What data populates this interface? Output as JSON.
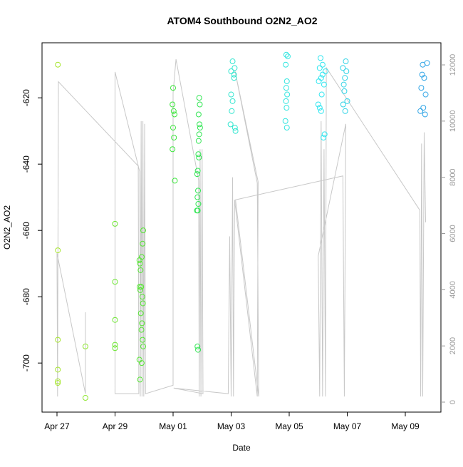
{
  "chart_data": {
    "type": "scatter",
    "title": "ATOM4 Southbound O2N2_AO2",
    "x_label": "Date",
    "y_label": "O2N2_AO2",
    "xlim": [
      -0.515,
      13.227
    ],
    "xticks": [
      {
        "value": 0,
        "label": "Apr 27"
      },
      {
        "value": 2,
        "label": "Apr 29"
      },
      {
        "value": 4,
        "label": "May 01"
      },
      {
        "value": 6,
        "label": "May 03"
      },
      {
        "value": 8,
        "label": "May 05"
      },
      {
        "value": 10,
        "label": "May 07"
      },
      {
        "value": 12,
        "label": "May 09"
      }
    ],
    "ylim": [
      -714.8,
      -603.4
    ],
    "yticks": [
      -620,
      -640,
      -660,
      -680,
      -700
    ],
    "y2lim": [
      -355,
      12787
    ],
    "y2ticks": [
      0,
      2000,
      4000,
      6000,
      8000,
      10000,
      12000
    ],
    "series": [
      {
        "color": "#a6e62e",
        "x": [
          0.03,
          0.03,
          0.03,
          0.03,
          0.03,
          0.03
        ],
        "values": [
          -610,
          -666,
          -693,
          -702,
          -705.5,
          -706
        ]
      },
      {
        "color": "#8ee62e",
        "x": [
          0.98,
          0.98
        ],
        "values": [
          -695,
          -710.5
        ]
      },
      {
        "color": "#6ee633",
        "x": [
          2.0,
          2.0,
          2.0,
          2.0,
          2.0
        ],
        "values": [
          -658,
          -675.5,
          -687,
          -694.5,
          -695.5
        ]
      },
      {
        "color": "#55e633",
        "x": [
          2.84,
          2.86,
          2.88,
          2.9,
          2.85,
          2.87,
          2.89,
          2.91,
          2.84,
          2.86,
          2.95,
          2.97,
          2.92,
          2.94,
          2.96,
          2.93,
          2.95,
          2.97,
          2.92
        ],
        "values": [
          -669,
          -670,
          -672,
          -677,
          -677,
          -678,
          -685,
          -690,
          -699,
          -705,
          -664,
          -660,
          -668,
          -680,
          -682,
          -688,
          -693,
          -695,
          -700
        ]
      },
      {
        "color": "#3ee63e",
        "x": [
          4.0,
          3.98,
          4.02,
          4.05,
          4.0,
          4.03,
          3.98,
          4.06
        ],
        "values": [
          -617,
          -622,
          -624,
          -625,
          -629,
          -632,
          -635.5,
          -645
        ]
      },
      {
        "color": "#33e655",
        "x": [
          4.9,
          4.92,
          4.88,
          4.91,
          4.93,
          4.9,
          4.88,
          4.87,
          4.89,
          4.85,
          4.83,
          4.86,
          4.84,
          4.87,
          4.82,
          4.85,
          4.84,
          4.86
        ],
        "values": [
          -620,
          -622,
          -625,
          -628,
          -629,
          -631,
          -633,
          -637,
          -638,
          -642,
          -643,
          -648,
          -650,
          -652,
          -654,
          -654,
          -695,
          -696
        ]
      },
      {
        "color": "#33e6d0",
        "x": [
          6.05,
          6.0,
          6.1,
          6.0,
          6.05,
          6.02,
          5.98,
          6.13,
          6.15,
          6.12,
          6.1
        ],
        "values": [
          -609,
          -612,
          -614,
          -619,
          -621,
          -624,
          -628,
          -629,
          -630,
          -611,
          -613
        ]
      },
      {
        "color": "#33e6e0",
        "x": [
          7.9,
          7.95,
          7.88,
          7.92,
          7.9,
          7.93,
          7.89,
          7.91,
          7.87,
          7.92
        ],
        "values": [
          -607,
          -607.5,
          -610,
          -615,
          -617,
          -619,
          -621,
          -623,
          -627,
          -629
        ]
      },
      {
        "color": "#33e6f0",
        "x": [
          9.08,
          9.05,
          9.15,
          9.1,
          9.2,
          9.12,
          9.0,
          9.05,
          9.1,
          9.22,
          9.18,
          9.15,
          9.25,
          9.02
        ],
        "values": [
          -608,
          -611,
          -613,
          -614,
          -616,
          -619,
          -622,
          -623,
          -624,
          -631,
          -632,
          -610,
          -612,
          -615
        ]
      },
      {
        "color": "#33d4e6",
        "x": [
          9.95,
          9.85,
          9.92,
          9.88,
          9.9,
          10.0,
          9.86,
          9.93,
          9.97
        ],
        "values": [
          -609,
          -611,
          -614,
          -616,
          -618,
          -621,
          -622,
          -624,
          -612
        ]
      },
      {
        "color": "#33a6e6",
        "x": [
          12.6,
          12.58,
          12.65,
          12.55,
          12.7,
          12.62,
          12.52,
          12.68,
          12.75
        ],
        "values": [
          -610,
          -613,
          -614,
          -617,
          -619,
          -623,
          -624,
          -625,
          -609.5
        ]
      },
      {
        "color": "#c8c8c8",
        "axis": "y2",
        "line": true,
        "x": [
          0.98,
          0.98,
          0.0,
          0.02,
          0.05,
          2.8,
          2.82,
          2.0,
          2.0,
          2.85,
          2.87,
          2.9,
          2.93,
          2.96,
          2.99,
          3.02,
          3.05,
          4.0,
          4.0,
          4.1,
          4.88,
          4.9,
          4.93,
          4.96,
          5.0,
          5.03,
          4.02,
          5.9,
          5.95,
          6.0,
          6.05,
          6.08,
          6.12,
          6.9,
          6.93,
          6.13,
          6.9,
          6.95,
          6.15,
          9.85,
          9.9,
          9.95,
          9.0,
          9.05,
          9.1,
          9.15,
          9.2,
          9.25,
          9.28,
          12.5,
          12.53,
          12.56,
          12.6,
          12.65,
          12.7
        ],
        "values": [
          3200,
          300,
          5300,
          200,
          11400,
          8400,
          300,
          300,
          11750,
          8200,
          200,
          10000,
          200,
          10000,
          200,
          9900,
          300,
          600,
          11000,
          12200,
          7900,
          200,
          9000,
          200,
          9000,
          300,
          500,
          300,
          5900,
          200,
          8000,
          200,
          7200,
          200,
          7840,
          11800,
          7800,
          200,
          7200,
          8050,
          200,
          9900,
          5200,
          200,
          10000,
          200,
          9000,
          200,
          11900,
          6830,
          200,
          9200,
          200,
          9600,
          6400
        ]
      }
    ]
  }
}
